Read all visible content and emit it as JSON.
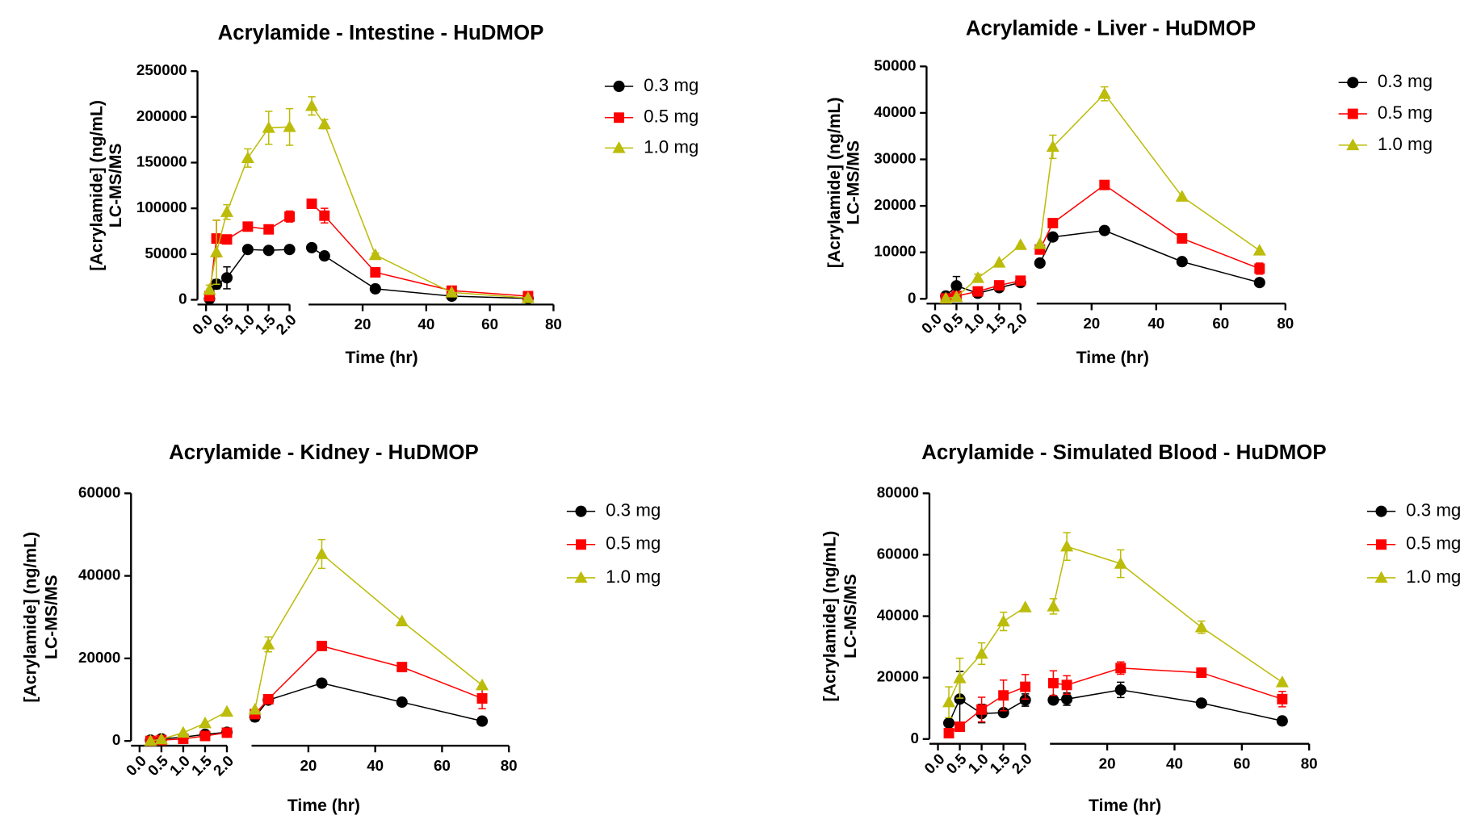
{
  "chart_data": [
    {
      "type": "line",
      "title": "Acrylamide - Intestine - HuDMOP",
      "xlabel": "Time (hr)",
      "ylabel": [
        "[Acrylamide] (ng/mL)",
        "LC-MS/MS"
      ],
      "x": [
        0.083,
        0.25,
        0.5,
        1,
        1.5,
        2,
        4,
        8,
        24,
        48,
        72
      ],
      "x_segments": [
        {
          "xlim": [
            0,
            2
          ],
          "xticks": [
            {
              "value": 0,
              "label": "0.0"
            },
            {
              "value": 0.5,
              "label": "0.5"
            },
            {
              "value": 1,
              "label": "1.0"
            },
            {
              "value": 1.5,
              "label": "1.5"
            },
            {
              "value": 2,
              "label": "2.0"
            }
          ]
        },
        {
          "xlim": [
            3,
            80
          ],
          "xticks": [
            20,
            40,
            60,
            80
          ]
        }
      ],
      "ylim": [
        0,
        250000
      ],
      "yticks": [
        0,
        50000,
        100000,
        150000,
        200000,
        250000
      ],
      "series": [
        {
          "name": "0.3 mg",
          "color": "#000000",
          "marker": "circle",
          "values": [
            1000,
            17000,
            24000,
            55000,
            54000,
            55000,
            57000,
            48000,
            12000,
            4000,
            1500
          ],
          "errors": [
            null,
            5000,
            12000,
            3000,
            2000,
            2000,
            2000,
            2000,
            1500,
            null,
            null
          ]
        },
        {
          "name": "0.5 mg",
          "color": "#ff0000",
          "marker": "square",
          "values": [
            4000,
            67000,
            66000,
            80000,
            77000,
            91000,
            105000,
            92000,
            30000,
            10000,
            4000
          ],
          "errors": [
            null,
            20000,
            3000,
            4000,
            3000,
            6000,
            3000,
            8000,
            3000,
            3000,
            null
          ]
        },
        {
          "name": "1.0 mg",
          "color": "#bcbc0a",
          "marker": "triangle",
          "values": [
            11000,
            52000,
            96000,
            155000,
            188000,
            189000,
            212000,
            192000,
            49000,
            8000,
            2000
          ],
          "errors": [
            5000,
            35000,
            8000,
            10000,
            18000,
            20000,
            10000,
            5000,
            2000,
            null,
            null
          ]
        }
      ]
    },
    {
      "type": "line",
      "title": "Acrylamide - Liver - HuDMOP",
      "xlabel": "Time (hr)",
      "ylabel": [
        "[Acrylamide] (ng/mL)",
        "LC-MS/MS"
      ],
      "x": [
        0.25,
        0.5,
        1,
        1.5,
        2,
        4,
        8,
        24,
        48,
        72
      ],
      "x_segments": [
        {
          "xlim": [
            0,
            2
          ],
          "xticks": [
            {
              "value": 0,
              "label": "0.0"
            },
            {
              "value": 0.5,
              "label": "0.5"
            },
            {
              "value": 1,
              "label": "1.0"
            },
            {
              "value": 1.5,
              "label": "1.5"
            },
            {
              "value": 2,
              "label": "2.0"
            }
          ]
        },
        {
          "xlim": [
            3,
            80
          ],
          "xticks": [
            20,
            40,
            60,
            80
          ]
        }
      ],
      "ylim": [
        0,
        50000
      ],
      "yticks": [
        0,
        10000,
        20000,
        30000,
        40000,
        50000
      ],
      "series": [
        {
          "name": "0.3 mg",
          "color": "#000000",
          "marker": "circle",
          "values": [
            600,
            2800,
            1200,
            2400,
            3500,
            7700,
            13300,
            14700,
            8000,
            3500
          ],
          "errors": [
            null,
            2000,
            800,
            null,
            null,
            null,
            null,
            null,
            null,
            500
          ]
        },
        {
          "name": "0.5 mg",
          "color": "#ff0000",
          "marker": "square",
          "values": [
            100,
            600,
            1600,
            2900,
            3900,
            10600,
            16300,
            24500,
            13000,
            6500
          ],
          "errors": [
            null,
            null,
            500,
            800,
            null,
            800,
            null,
            600,
            null,
            1200
          ]
        },
        {
          "name": "1.0 mg",
          "color": "#bcbc0a",
          "marker": "triangle",
          "values": [
            100,
            400,
            4500,
            7800,
            11600,
            11800,
            32700,
            44100,
            22000,
            10400
          ],
          "errors": [
            null,
            null,
            800,
            null,
            null,
            null,
            2500,
            1500,
            null,
            null
          ]
        }
      ]
    },
    {
      "type": "line",
      "title": "Acrylamide - Kidney - HuDMOP",
      "xlabel": "Time (hr)",
      "ylabel": [
        "[Acrylamide] (ng/mL)",
        "LC-MS/MS"
      ],
      "x": [
        0.25,
        0.5,
        1,
        1.5,
        2,
        4,
        8,
        24,
        48,
        72
      ],
      "x_segments": [
        {
          "xlim": [
            0,
            2
          ],
          "xticks": [
            {
              "value": 0,
              "label": "0.0"
            },
            {
              "value": 0.5,
              "label": "0.5"
            },
            {
              "value": 1,
              "label": "1.0"
            },
            {
              "value": 1.5,
              "label": "1.5"
            },
            {
              "value": 2,
              "label": "2.0"
            }
          ]
        },
        {
          "xlim": [
            3,
            80
          ],
          "xticks": [
            20,
            40,
            60,
            80
          ]
        }
      ],
      "ylim": [
        0,
        60000
      ],
      "yticks": [
        0,
        20000,
        40000,
        60000
      ],
      "series": [
        {
          "name": "0.3 mg",
          "color": "#000000",
          "marker": "circle",
          "values": [
            200,
            500,
            900,
            1600,
            2100,
            5800,
            9900,
            14000,
            9400,
            4800
          ],
          "errors": [
            null,
            null,
            null,
            null,
            null,
            1000,
            null,
            null,
            null,
            null
          ]
        },
        {
          "name": "0.5 mg",
          "color": "#ff0000",
          "marker": "square",
          "values": [
            0,
            200,
            500,
            1200,
            2000,
            6500,
            10100,
            23000,
            17900,
            10300
          ],
          "errors": [
            null,
            null,
            null,
            null,
            null,
            null,
            1000,
            null,
            null,
            2500
          ]
        },
        {
          "name": "1.0 mg",
          "color": "#bcbc0a",
          "marker": "triangle",
          "values": [
            0,
            400,
            2000,
            4300,
            7100,
            7600,
            23400,
            45300,
            29000,
            13500
          ],
          "errors": [
            null,
            null,
            null,
            null,
            null,
            null,
            1800,
            3500,
            null,
            null
          ]
        }
      ]
    },
    {
      "type": "line",
      "title": "Acrylamide - Simulated Blood - HuDMOP",
      "xlabel": "Time (hr)",
      "ylabel": [
        "[Acrylamide] (ng/mL)",
        "LC-MS/MS"
      ],
      "x": [
        0.25,
        0.5,
        1,
        1.5,
        2,
        4,
        8,
        24,
        48,
        72
      ],
      "x_segments": [
        {
          "xlim": [
            0,
            2
          ],
          "xticks": [
            {
              "value": 0,
              "label": "0.0"
            },
            {
              "value": 0.5,
              "label": "0.5"
            },
            {
              "value": 1,
              "label": "1.0"
            },
            {
              "value": 1.5,
              "label": "1.5"
            },
            {
              "value": 2,
              "label": "2.0"
            }
          ]
        },
        {
          "xlim": [
            3,
            80
          ],
          "xticks": [
            20,
            40,
            60,
            80
          ]
        }
      ],
      "ylim": [
        0,
        80000
      ],
      "yticks": [
        0,
        20000,
        40000,
        60000,
        80000
      ],
      "series": [
        {
          "name": "0.3 mg",
          "color": "#000000",
          "marker": "circle",
          "values": [
            5200,
            13000,
            8300,
            8600,
            12700,
            12700,
            13000,
            16000,
            11700,
            5900
          ],
          "errors": [
            null,
            9000,
            3000,
            null,
            2000,
            null,
            2000,
            2500,
            null,
            null
          ]
        },
        {
          "name": "0.5 mg",
          "color": "#ff0000",
          "marker": "square",
          "values": [
            1900,
            4000,
            9600,
            14200,
            17000,
            18200,
            17600,
            23100,
            21600,
            13000
          ],
          "errors": [
            null,
            null,
            4000,
            5000,
            4000,
            4000,
            3000,
            2000,
            null,
            2500
          ]
        },
        {
          "name": "1.0 mg",
          "color": "#bcbc0a",
          "marker": "triangle",
          "values": [
            12000,
            19800,
            27800,
            38300,
            42900,
            43200,
            62700,
            57100,
            36400,
            18500
          ],
          "errors": [
            5000,
            6500,
            3500,
            3000,
            null,
            2500,
            4500,
            4500,
            2000,
            null
          ]
        }
      ]
    }
  ]
}
